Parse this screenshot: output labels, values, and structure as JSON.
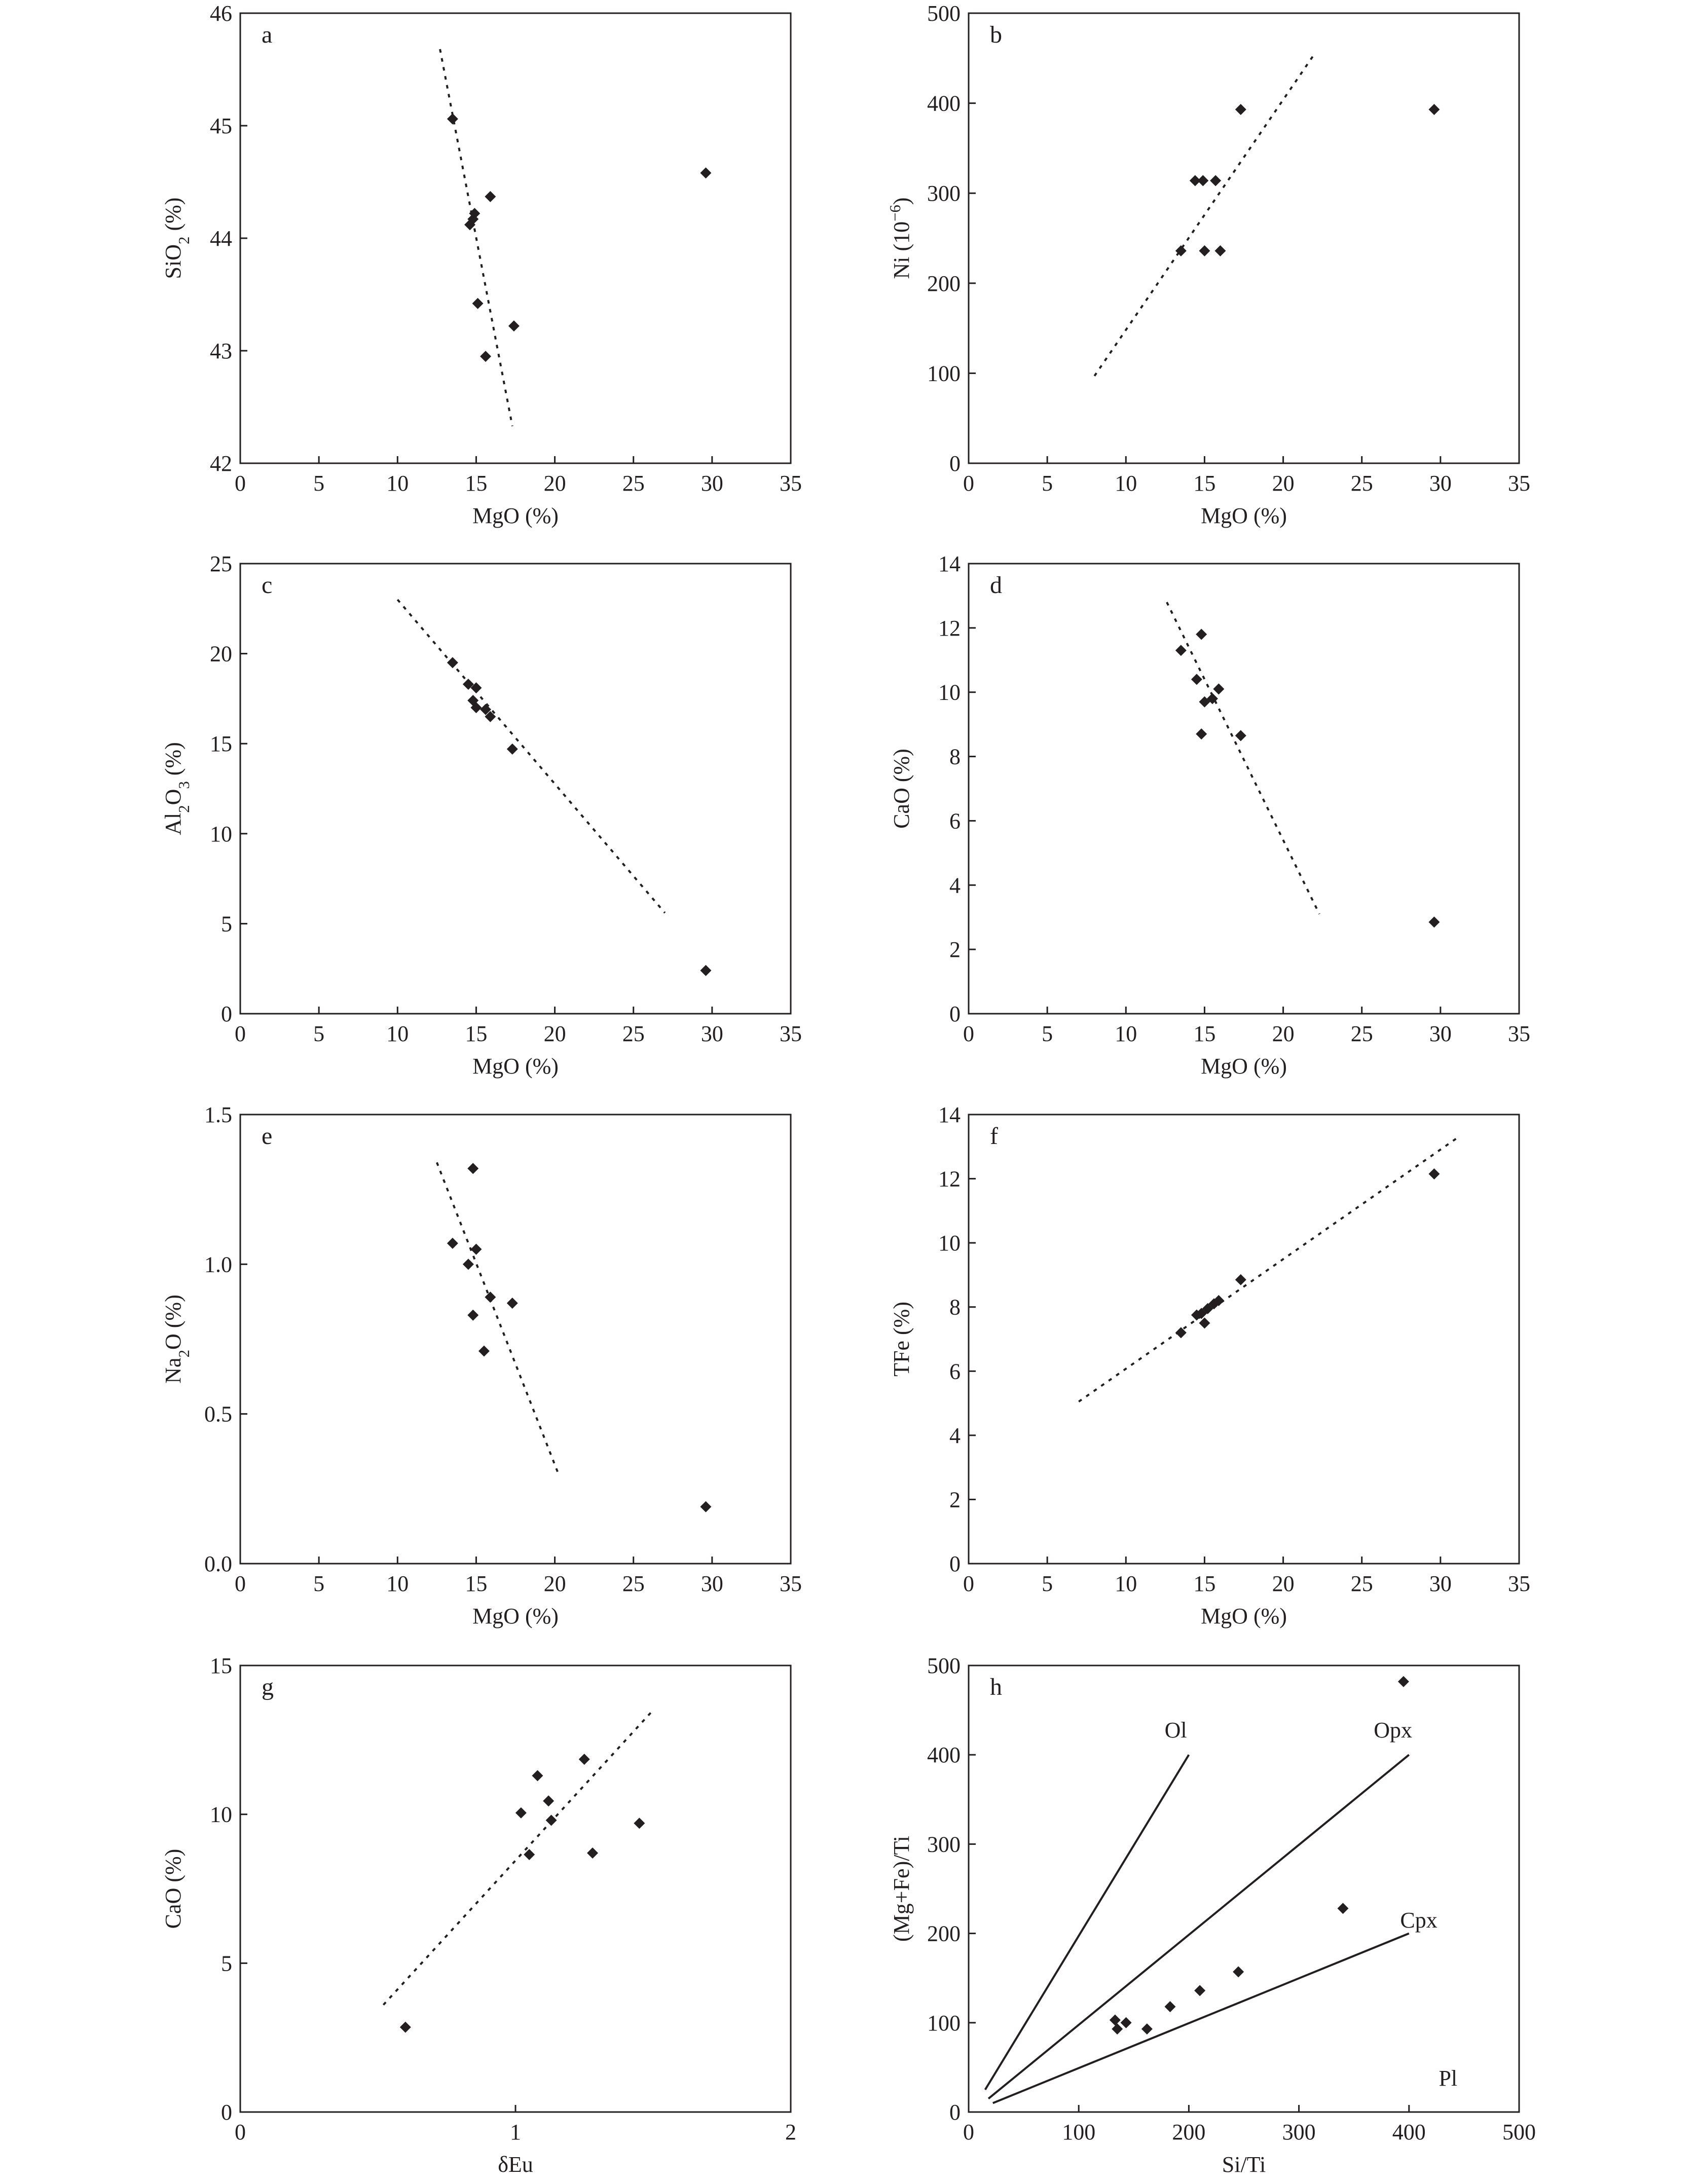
{
  "colors": {
    "ink": "#231f20",
    "background": "#ffffff"
  },
  "chart_data": [
    {
      "panel": "a",
      "type": "scatter",
      "xlabel": "MgO (%)",
      "ylabel": "SiO₂ (%)",
      "xlim": [
        0,
        35
      ],
      "ylim": [
        42,
        46
      ],
      "xticks": [
        0,
        5,
        10,
        15,
        20,
        25,
        30,
        35
      ],
      "yticks": [
        42,
        43,
        44,
        45,
        46
      ],
      "ytick_decimals": 0,
      "points": [
        [
          13.5,
          45.06
        ],
        [
          14.6,
          44.12
        ],
        [
          14.8,
          44.17
        ],
        [
          14.9,
          44.22
        ],
        [
          15.9,
          44.37
        ],
        [
          15.1,
          43.42
        ],
        [
          15.6,
          42.95
        ],
        [
          17.4,
          43.22
        ],
        [
          29.6,
          44.58
        ]
      ],
      "trend_lines": [
        {
          "style": "dotted",
          "points": [
            [
              12.7,
              45.68
            ],
            [
              17.3,
              42.33
            ]
          ]
        }
      ]
    },
    {
      "panel": "b",
      "type": "scatter",
      "xlabel": "MgO (%)",
      "ylabel": "Ni (10⁻⁶)",
      "xlim": [
        0,
        35
      ],
      "ylim": [
        0,
        500
      ],
      "xticks": [
        0,
        5,
        10,
        15,
        20,
        25,
        30,
        35
      ],
      "yticks": [
        0,
        100,
        200,
        300,
        400,
        500
      ],
      "ytick_decimals": 0,
      "points": [
        [
          13.5,
          236
        ],
        [
          14.4,
          314
        ],
        [
          14.9,
          314
        ],
        [
          15.7,
          314
        ],
        [
          15.0,
          236
        ],
        [
          16.0,
          236
        ],
        [
          17.3,
          393
        ],
        [
          29.6,
          393
        ]
      ],
      "trend_lines": [
        {
          "style": "dotted",
          "points": [
            [
              8.0,
              97
            ],
            [
              22.0,
              455
            ]
          ]
        }
      ]
    },
    {
      "panel": "c",
      "type": "scatter",
      "xlabel": "MgO (%)",
      "ylabel": "Al₂O₃ (%)",
      "xlim": [
        0,
        35
      ],
      "ylim": [
        0,
        25
      ],
      "xticks": [
        0,
        5,
        10,
        15,
        20,
        25,
        30,
        35
      ],
      "yticks": [
        0,
        5,
        10,
        15,
        20,
        25
      ],
      "ytick_decimals": 0,
      "points": [
        [
          13.5,
          19.5
        ],
        [
          14.5,
          18.3
        ],
        [
          15.0,
          18.1
        ],
        [
          14.8,
          17.4
        ],
        [
          15.0,
          17.0
        ],
        [
          15.6,
          16.9
        ],
        [
          15.9,
          16.5
        ],
        [
          17.3,
          14.7
        ],
        [
          29.6,
          2.4
        ]
      ],
      "trend_lines": [
        {
          "style": "dotted",
          "points": [
            [
              10.0,
              23.0
            ],
            [
              27.0,
              5.6
            ]
          ]
        }
      ]
    },
    {
      "panel": "d",
      "type": "scatter",
      "xlabel": "MgO (%)",
      "ylabel": "CaO (%)",
      "xlim": [
        0,
        35
      ],
      "ylim": [
        0,
        14
      ],
      "xticks": [
        0,
        5,
        10,
        15,
        20,
        25,
        30,
        35
      ],
      "yticks": [
        0,
        2,
        4,
        6,
        8,
        10,
        12,
        14
      ],
      "ytick_decimals": 0,
      "points": [
        [
          13.5,
          11.3
        ],
        [
          14.8,
          11.8
        ],
        [
          14.5,
          10.4
        ],
        [
          15.9,
          10.1
        ],
        [
          15.0,
          9.7
        ],
        [
          15.5,
          9.8
        ],
        [
          14.8,
          8.7
        ],
        [
          17.3,
          8.65
        ],
        [
          29.6,
          2.85
        ]
      ],
      "trend_lines": [
        {
          "style": "dotted",
          "points": [
            [
              12.6,
              12.8
            ],
            [
              22.3,
              3.1
            ]
          ]
        }
      ]
    },
    {
      "panel": "e",
      "type": "scatter",
      "xlabel": "MgO (%)",
      "ylabel": "Na₂O (%)",
      "xlim": [
        0,
        35
      ],
      "ylim": [
        0,
        1.5
      ],
      "xticks": [
        0,
        5,
        10,
        15,
        20,
        25,
        30,
        35
      ],
      "yticks": [
        0,
        0.5,
        1.0,
        1.5
      ],
      "ytick_decimals": 1,
      "points": [
        [
          14.8,
          1.32
        ],
        [
          13.5,
          1.07
        ],
        [
          15.0,
          1.05
        ],
        [
          14.5,
          1.0
        ],
        [
          15.9,
          0.89
        ],
        [
          17.3,
          0.87
        ],
        [
          14.8,
          0.83
        ],
        [
          15.5,
          0.71
        ],
        [
          29.6,
          0.19
        ]
      ],
      "trend_lines": [
        {
          "style": "dotted",
          "points": [
            [
              12.5,
              1.34
            ],
            [
              20.3,
              0.29
            ]
          ]
        }
      ]
    },
    {
      "panel": "f",
      "type": "scatter",
      "xlabel": "MgO (%)",
      "ylabel": "TFe (%)",
      "xlim": [
        0,
        35
      ],
      "ylim": [
        0,
        14
      ],
      "xticks": [
        0,
        5,
        10,
        15,
        20,
        25,
        30,
        35
      ],
      "yticks": [
        0,
        2,
        4,
        6,
        8,
        10,
        12,
        14
      ],
      "ytick_decimals": 0,
      "points": [
        [
          13.5,
          7.2
        ],
        [
          14.5,
          7.75
        ],
        [
          14.8,
          7.8
        ],
        [
          15.0,
          7.5
        ],
        [
          15.2,
          7.95
        ],
        [
          15.6,
          8.1
        ],
        [
          15.9,
          8.2
        ],
        [
          17.3,
          8.85
        ],
        [
          29.6,
          12.15
        ]
      ],
      "trend_lines": [
        {
          "style": "dotted",
          "points": [
            [
              7.0,
              5.05
            ],
            [
              31.0,
              13.25
            ]
          ]
        }
      ]
    },
    {
      "panel": "g",
      "type": "scatter",
      "xlabel": "δEu",
      "ylabel": "CaO (%)",
      "xlim": [
        0,
        2
      ],
      "ylim": [
        0,
        15
      ],
      "xticks": [
        0,
        1,
        2
      ],
      "yticks": [
        0,
        5,
        10,
        15
      ],
      "ytick_decimals": 0,
      "points": [
        [
          1.08,
          11.3
        ],
        [
          1.25,
          11.85
        ],
        [
          1.12,
          10.45
        ],
        [
          1.02,
          10.05
        ],
        [
          1.13,
          9.8
        ],
        [
          1.45,
          9.7
        ],
        [
          1.05,
          8.65
        ],
        [
          1.28,
          8.7
        ],
        [
          0.6,
          2.85
        ]
      ],
      "trend_lines": [
        {
          "style": "dotted",
          "points": [
            [
              0.52,
              3.6
            ],
            [
              1.5,
              13.5
            ]
          ]
        }
      ]
    },
    {
      "panel": "h",
      "type": "scatter",
      "xlabel": "Si/Ti",
      "ylabel": "(Mg+Fe)/Ti",
      "xlim": [
        0,
        500
      ],
      "ylim": [
        0,
        500
      ],
      "xticks": [
        0,
        100,
        200,
        300,
        400,
        500
      ],
      "yticks": [
        0,
        100,
        200,
        300,
        400,
        500
      ],
      "ytick_decimals": 0,
      "points": [
        [
          133,
          103
        ],
        [
          135,
          93
        ],
        [
          143,
          100
        ],
        [
          162,
          93
        ],
        [
          183,
          118
        ],
        [
          210,
          136
        ],
        [
          245,
          157
        ],
        [
          340,
          228
        ],
        [
          395,
          482
        ]
      ],
      "trend_lines": [
        {
          "style": "solid",
          "label": "Ol",
          "points": [
            [
              15,
              25
            ],
            [
              200,
              400
            ]
          ]
        },
        {
          "style": "solid",
          "label": "Opx",
          "points": [
            [
              18,
              15
            ],
            [
              400,
              400
            ]
          ]
        },
        {
          "style": "solid",
          "label": "Cpx",
          "points": [
            [
              22,
              10
            ],
            [
              400,
              200
            ]
          ]
        }
      ],
      "annotations": [
        {
          "text": "Ol",
          "x": 178,
          "y": 428
        },
        {
          "text": "Opx",
          "x": 368,
          "y": 428
        },
        {
          "text": "Cpx",
          "x": 392,
          "y": 215
        },
        {
          "text": "Pl",
          "x": 427,
          "y": 38
        }
      ]
    }
  ]
}
